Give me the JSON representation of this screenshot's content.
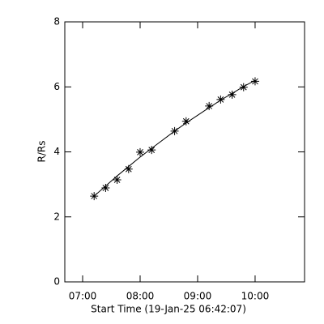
{
  "chart_data": {
    "type": "line",
    "x_label": "Start Time (19-Jan-25 06:42:07)",
    "y_label": "R/Rs",
    "x": [
      7.2,
      7.4,
      7.6,
      7.8,
      8.0,
      8.2,
      8.6,
      8.8,
      9.2,
      9.4,
      9.6,
      9.8,
      10.0
    ],
    "series": [
      {
        "color": "#000000",
        "marker": "asterisk",
        "values": [
          2.64,
          2.89,
          3.14,
          3.47,
          3.99,
          4.06,
          4.64,
          4.94,
          5.41,
          5.61,
          5.76,
          5.99,
          6.17
        ]
      },
      {
        "color": "#000000",
        "marker": "none",
        "values": [
          2.64,
          2.95,
          3.26,
          3.55,
          3.84,
          4.11,
          4.64,
          4.89,
          5.36,
          5.59,
          5.8,
          6.01,
          6.2
        ]
      }
    ],
    "xlim": [
      6.69,
      10.86
    ],
    "xticks": [
      {
        "value": 7,
        "label": "07:00"
      },
      {
        "value": 8,
        "label": "08:00"
      },
      {
        "value": 9,
        "label": "09:00"
      },
      {
        "value": 10,
        "label": "10:00"
      }
    ],
    "ylim": [
      0,
      8
    ],
    "yticks": [
      0,
      2,
      4,
      6,
      8
    ]
  }
}
